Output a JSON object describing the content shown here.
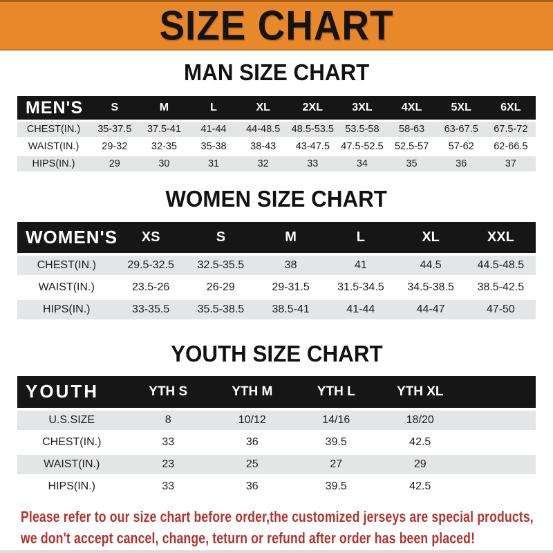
{
  "banner": {
    "title": "SIZE CHART"
  },
  "colors": {
    "banner_orange": "#E8882A",
    "banner_edge_dark": "#A85F17",
    "header_band_black": "#161616",
    "row_gray": "#E4E5E6",
    "footer_red": "#B23230"
  },
  "chart_data": [
    {
      "type": "table",
      "title": "MAN SIZE CHART",
      "header_label": "MEN'S",
      "columns": [
        "S",
        "M",
        "L",
        "XL",
        "2XL",
        "3XL",
        "4XL",
        "5XL",
        "6XL"
      ],
      "rows": [
        {
          "label": "CHEST(IN.)",
          "values": [
            "35-37.5",
            "37.5-41",
            "41-44",
            "44-48.5",
            "48.5-53.5",
            "53.5-58",
            "58-63",
            "63-67.5",
            "67.5-72"
          ]
        },
        {
          "label": "WAIST(IN.)",
          "values": [
            "29-32",
            "32-35",
            "35-38",
            "38-43",
            "43-47.5",
            "47.5-52.5",
            "52.5-57",
            "57-62",
            "62-66.5"
          ]
        },
        {
          "label": "HIPS(IN.)",
          "values": [
            "29",
            "30",
            "31",
            "32",
            "33",
            "34",
            "35",
            "36",
            "37"
          ]
        }
      ]
    },
    {
      "type": "table",
      "title": "WOMEN SIZE CHART",
      "header_label": "WOMEN'S",
      "columns": [
        "XS",
        "S",
        "M",
        "L",
        "XL",
        "XXL"
      ],
      "rows": [
        {
          "label": "CHEST(IN.)",
          "values": [
            "29.5-32.5",
            "32.5-35.5",
            "38",
            "41",
            "44.5",
            "44.5-48.5"
          ]
        },
        {
          "label": "WAIST(IN.)",
          "values": [
            "23.5-26",
            "26-29",
            "29-31.5",
            "31.5-34.5",
            "34.5-38.5",
            "38.5-42.5"
          ]
        },
        {
          "label": "HIPS(IN.)",
          "values": [
            "33-35.5",
            "35.5-38.5",
            "38.5-41",
            "41-44",
            "44-47",
            "47-50"
          ]
        }
      ]
    },
    {
      "type": "table",
      "title": "YOUTH SIZE CHART",
      "header_label": "YOUTH",
      "columns": [
        "YTH S",
        "YTH M",
        "YTH L",
        "YTH XL"
      ],
      "rows": [
        {
          "label": "U.S.SIZE",
          "values": [
            "8",
            "10/12",
            "14/16",
            "18/20"
          ]
        },
        {
          "label": "CHEST(IN.)",
          "values": [
            "33",
            "36",
            "39.5",
            "42.5"
          ]
        },
        {
          "label": "WAIST(IN.)",
          "values": [
            "23",
            "25",
            "27",
            "29"
          ]
        },
        {
          "label": "HIPS(IN.)",
          "values": [
            "33",
            "36",
            "39.5",
            "42.5"
          ]
        }
      ]
    }
  ],
  "footer": {
    "line1": "Please refer to our size chart before order,the customized jerseys are special products,",
    "line2": "we don't accept cancel, change, teturn or refund after order has been placed!"
  }
}
